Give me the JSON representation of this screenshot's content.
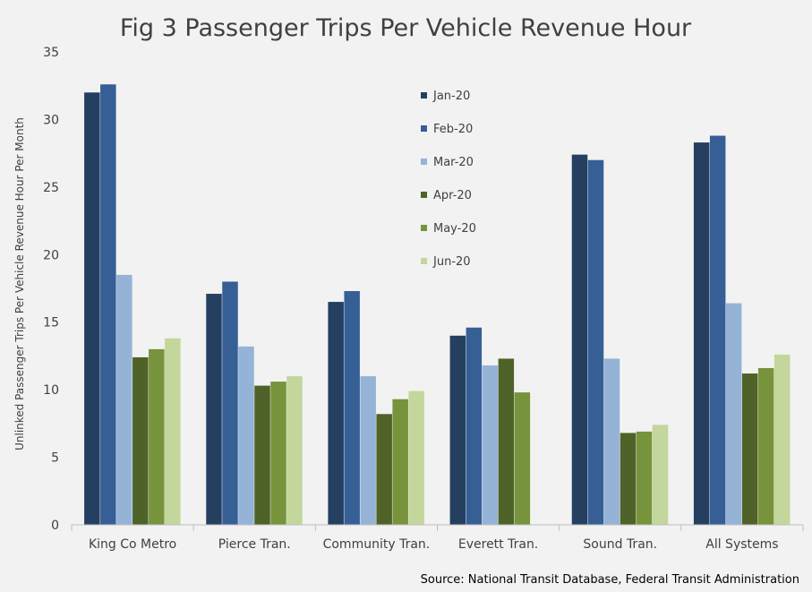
{
  "chart_data": {
    "type": "bar",
    "title": "Fig 3 Passenger Trips Per Vehicle Revenue Hour",
    "xlabel": "",
    "ylabel": "Unlinked Passenger Trips Per Vehicle Revenue Hour Per Month",
    "ylim": [
      0,
      35
    ],
    "yticks": [
      "0",
      "5",
      "10",
      "15",
      "20",
      "25",
      "30",
      "35"
    ],
    "grid": false,
    "legend_position": "top-center",
    "categories": [
      "King Co Metro",
      "Pierce Tran.",
      "Community Tran.",
      "Everett Tran.",
      "Sound Tran.",
      "All Systems"
    ],
    "series": [
      {
        "name": "Jan-20",
        "color": "#243f60",
        "values": [
          32.0,
          17.1,
          16.5,
          14.0,
          27.4,
          28.3
        ]
      },
      {
        "name": "Feb-20",
        "color": "#365f96",
        "values": [
          32.6,
          18.0,
          17.3,
          14.6,
          27.0,
          28.8
        ]
      },
      {
        "name": "Mar-20",
        "color": "#95b3d7",
        "values": [
          18.5,
          13.2,
          11.0,
          11.8,
          12.3,
          16.4
        ]
      },
      {
        "name": "Apr-20",
        "color": "#4f6228",
        "values": [
          12.4,
          10.3,
          8.2,
          12.3,
          6.8,
          11.2
        ]
      },
      {
        "name": "May-20",
        "color": "#77933c",
        "values": [
          13.0,
          10.6,
          9.3,
          9.8,
          6.9,
          11.6
        ]
      },
      {
        "name": "Jun-20",
        "color": "#c3d69b",
        "values": [
          13.8,
          11.0,
          9.9,
          null,
          7.4,
          12.6
        ]
      }
    ]
  },
  "source_text": "Source: National Transit Database, Federal Transit Administration"
}
